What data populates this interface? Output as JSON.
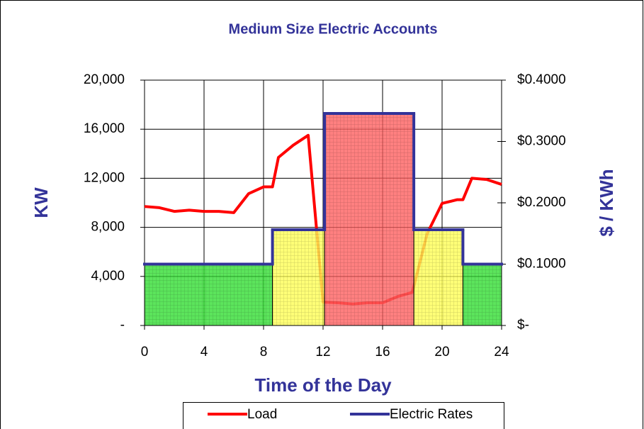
{
  "chart_data": {
    "type": "line",
    "title": "Medium Size Electric Accounts",
    "xlabel": "Time of the Day",
    "ylabel": "KW",
    "y2label": "$ / KWh",
    "xlim": [
      0,
      24
    ],
    "xticks": [
      0,
      4,
      8,
      12,
      16,
      20,
      24
    ],
    "ylim": [
      0,
      20000
    ],
    "yticks": [
      {
        "value": 0,
        "label": "-"
      },
      {
        "value": 4000,
        "label": "4,000"
      },
      {
        "value": 8000,
        "label": "8,000"
      },
      {
        "value": 12000,
        "label": "12,000"
      },
      {
        "value": 16000,
        "label": "16,000"
      },
      {
        "value": 20000,
        "label": "20,000"
      }
    ],
    "y2lim": [
      0,
      0.4
    ],
    "y2ticks": [
      {
        "value": 0,
        "label": "$-"
      },
      {
        "value": 0.1,
        "label": "$0.1000"
      },
      {
        "value": 0.2,
        "label": "$0.2000"
      },
      {
        "value": 0.3,
        "label": "$0.3000"
      },
      {
        "value": 0.4,
        "label": "$0.4000"
      }
    ],
    "grid": true,
    "legend": "bottom",
    "series": [
      {
        "name": "Load",
        "color": "#ff0000",
        "x": [
          0,
          1,
          2,
          3,
          4,
          5,
          6,
          7,
          8,
          8.6,
          9,
          10,
          11,
          12,
          13,
          14,
          15,
          16,
          17,
          18,
          19,
          20,
          21,
          21.4,
          22,
          23,
          24
        ],
        "values": [
          9700,
          9600,
          9300,
          9400,
          9300,
          9300,
          9200,
          10750,
          11300,
          11300,
          13700,
          14700,
          15500,
          1900,
          1850,
          1750,
          1850,
          1850,
          2350,
          2700,
          7500,
          9950,
          10250,
          10250,
          12000,
          11900,
          11500
        ]
      },
      {
        "name": "Electric Rates",
        "color": "#333399",
        "axis": "y2",
        "steps": [
          0,
          8.6,
          12.1,
          18.1,
          21.4,
          24
        ],
        "values": [
          0.1,
          0.156,
          0.3457,
          0.156,
          0.1
        ],
        "fills": [
          "#33dd33",
          "#ffff55",
          "#ff6060",
          "#ffff55",
          "#33dd33"
        ]
      }
    ]
  }
}
